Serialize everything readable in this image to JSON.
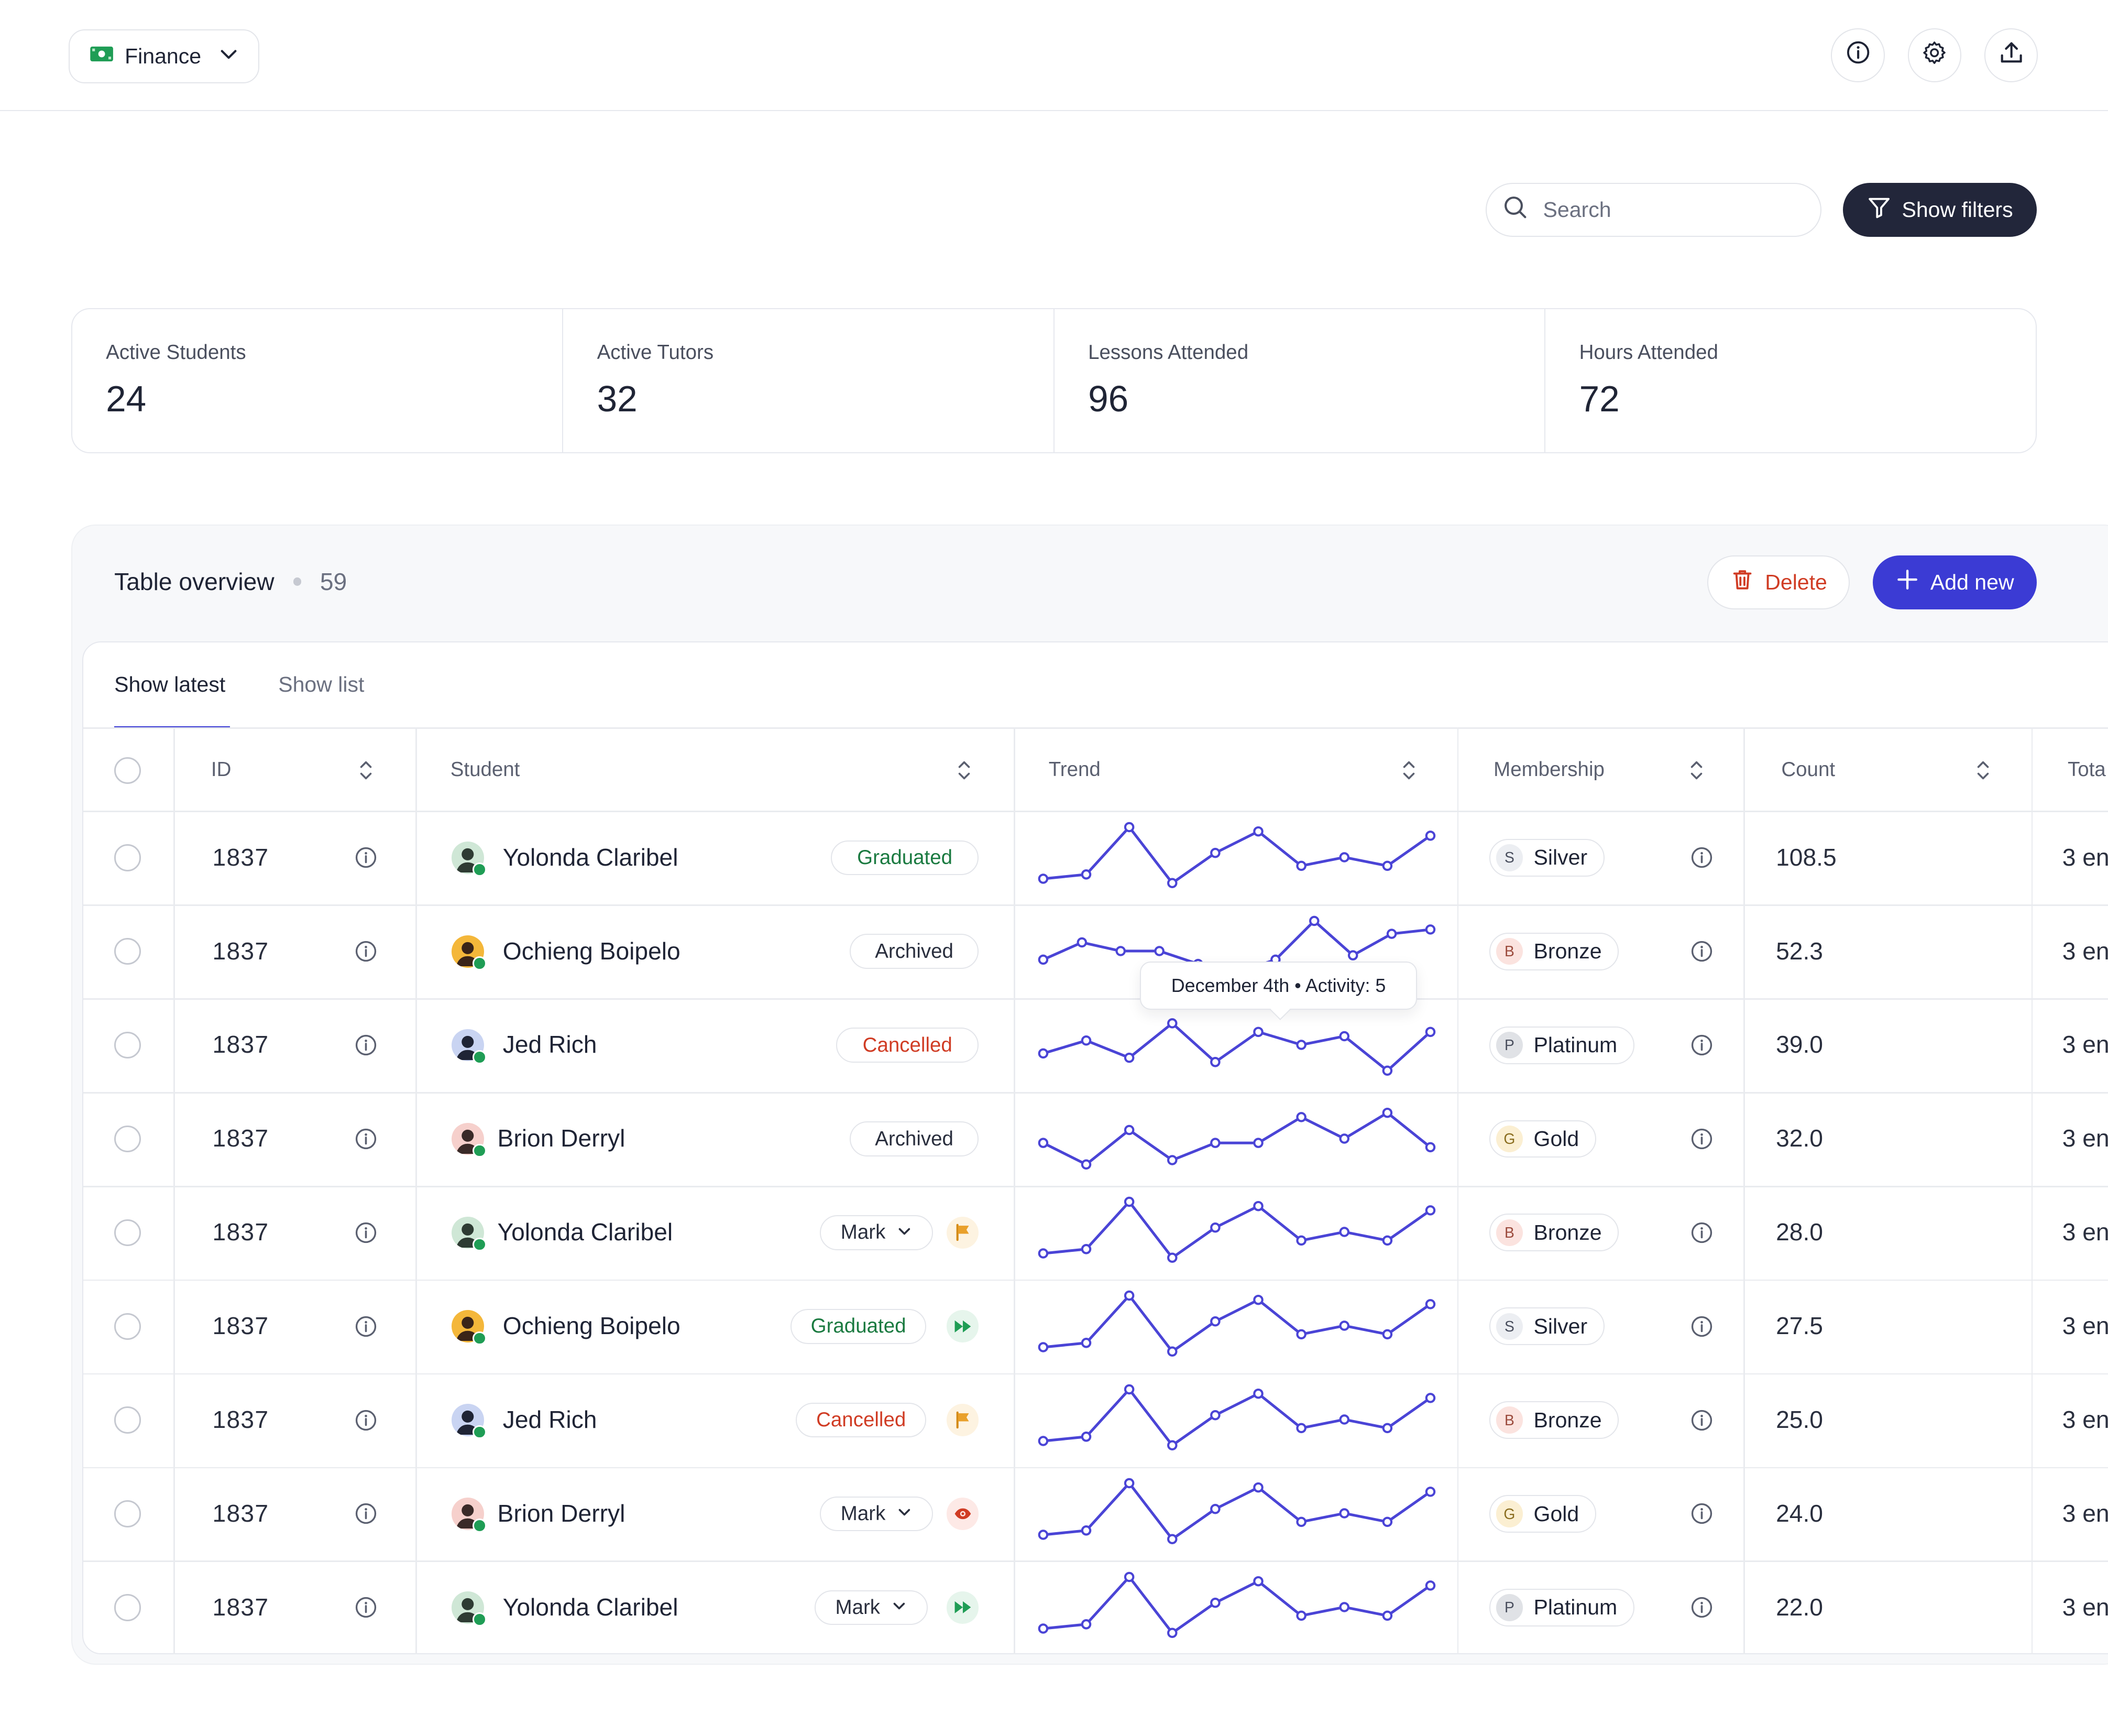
{
  "colors": {
    "accent": "#3b3bd4",
    "dark_button": "#22263a",
    "danger": "#d03c24",
    "success": "#1a7a40",
    "spark": "#4a44d6"
  },
  "topbar": {
    "workspace": "Finance",
    "workspace_icon": "banknote-icon",
    "icons": [
      "info-icon",
      "gear-icon",
      "upload-icon"
    ]
  },
  "toolbar": {
    "search_placeholder": "Search",
    "filters_label": "Show filters"
  },
  "stats": [
    {
      "label": "Active Students",
      "value": "24"
    },
    {
      "label": "Active Tutors",
      "value": "32"
    },
    {
      "label": "Lessons Attended",
      "value": "96"
    },
    {
      "label": "Hours Attended",
      "value": "72"
    }
  ],
  "table": {
    "title": "Table overview",
    "count": "59",
    "delete_label": "Delete",
    "add_label": "Add new",
    "tabs": [
      {
        "label": "Show latest",
        "active": true
      },
      {
        "label": "Show list",
        "active": false
      }
    ],
    "columns": [
      "ID",
      "Student",
      "Trend",
      "Membership",
      "Count",
      "Tota"
    ],
    "tooltip": "December 4th • Activity: 5",
    "rows": [
      {
        "id": "1837",
        "student": "Yolonda Claribel",
        "status": "Graduated",
        "status_type": "green",
        "action": null,
        "membership": "Silver",
        "tier": "S",
        "count": "108.5",
        "total": "3 en",
        "trend": [
          0,
          1,
          12,
          -1,
          6,
          11,
          3,
          5,
          3,
          10
        ]
      },
      {
        "id": "1837",
        "student": "Ochieng Boipelo",
        "status": "Archived",
        "status_type": "gray",
        "action": null,
        "membership": "Bronze",
        "tier": "B",
        "count": "52.3",
        "total": "3 en",
        "trend": [
          3,
          7,
          5,
          5,
          2,
          0,
          3,
          12,
          4,
          9,
          10
        ]
      },
      {
        "id": "1837",
        "student": "Jed Rich",
        "status": "Cancelled",
        "status_type": "red",
        "action": null,
        "membership": "Platinum",
        "tier": "P",
        "count": "39.0",
        "total": "3 en",
        "trend": [
          3,
          6,
          2,
          10,
          1,
          8,
          5,
          7,
          -1,
          8
        ]
      },
      {
        "id": "1837",
        "student": "Brion Derryl",
        "status": "Archived",
        "status_type": "gray",
        "action": null,
        "membership": "Gold",
        "tier": "G",
        "count": "32.0",
        "total": "3 en",
        "trend": [
          4,
          -1,
          7,
          0,
          4,
          4,
          10,
          5,
          11,
          3
        ]
      },
      {
        "id": "1837",
        "student": "Yolonda Claribel",
        "status": "Mark",
        "status_type": "mark",
        "action": "flag",
        "membership": "Bronze",
        "tier": "B",
        "count": "28.0",
        "total": "3 en",
        "trend": [
          0,
          1,
          12,
          -1,
          6,
          11,
          3,
          5,
          3,
          10
        ]
      },
      {
        "id": "1837",
        "student": "Ochieng Boipelo",
        "status": "Graduated",
        "status_type": "green",
        "action": "fast-forward",
        "membership": "Silver",
        "tier": "S",
        "count": "27.5",
        "total": "3 en",
        "trend": [
          0,
          1,
          12,
          -1,
          6,
          11,
          3,
          5,
          3,
          10
        ]
      },
      {
        "id": "1837",
        "student": "Jed Rich",
        "status": "Cancelled",
        "status_type": "red",
        "action": "flag",
        "membership": "Bronze",
        "tier": "B",
        "count": "25.0",
        "total": "3 en",
        "trend": [
          0,
          1,
          12,
          -1,
          6,
          11,
          3,
          5,
          3,
          10
        ]
      },
      {
        "id": "1837",
        "student": "Brion Derryl",
        "status": "Mark",
        "status_type": "mark",
        "action": "eye",
        "membership": "Gold",
        "tier": "G",
        "count": "24.0",
        "total": "3 en",
        "trend": [
          0,
          1,
          12,
          -1,
          6,
          11,
          3,
          5,
          3,
          10
        ]
      },
      {
        "id": "1837",
        "student": "Yolonda Claribel",
        "status": "Mark",
        "status_type": "mark",
        "action": "fast-forward",
        "membership": "Platinum",
        "tier": "P",
        "count": "22.0",
        "total": "3 en",
        "trend": [
          0,
          1,
          12,
          -1,
          6,
          11,
          3,
          5,
          3,
          10
        ]
      }
    ]
  }
}
